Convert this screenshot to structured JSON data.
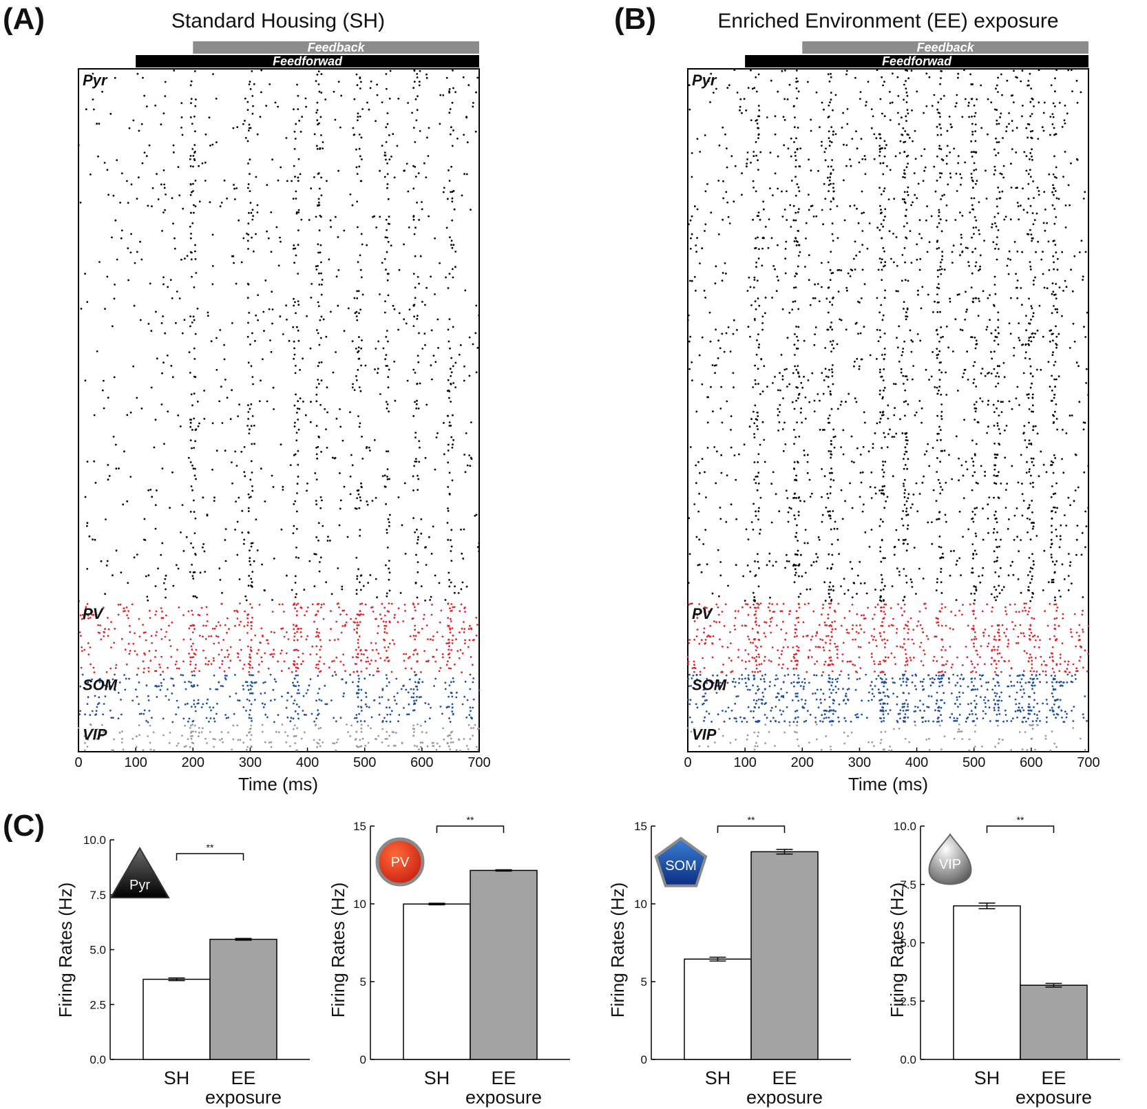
{
  "figure": {
    "panel_a_letter": "(A)",
    "panel_b_letter": "(B)",
    "panel_c_letter": "(C)"
  },
  "chart_data": [
    {
      "type": "scatter",
      "subtype": "raster",
      "id": "raster_sh",
      "title": "Standard Housing (SH)",
      "xlabel": "Time (ms)",
      "xlim": [
        0,
        700
      ],
      "xticks": [
        0,
        100,
        200,
        300,
        400,
        500,
        600,
        700
      ],
      "bars": [
        {
          "label": "Feedback",
          "start": 200,
          "end": 700,
          "color": "#8c8c8c"
        },
        {
          "label": "Feedforwad",
          "start": 100,
          "end": 700,
          "color": "#000000"
        }
      ],
      "populations": [
        {
          "name": "Pyr",
          "color": "#000000",
          "neurons": 150,
          "density": 1.0
        },
        {
          "name": "PV",
          "color": "#e0262b",
          "neurons": 20,
          "density": 1.0
        },
        {
          "name": "SOM",
          "color": "#1f4fa3",
          "neurons": 14,
          "density": 1.0
        },
        {
          "name": "VIP",
          "color": "#9a9a9a",
          "neurons": 8,
          "density": 1.0
        }
      ]
    },
    {
      "type": "scatter",
      "subtype": "raster",
      "id": "raster_ee",
      "title": "Enriched Environment (EE) exposure",
      "xlabel": "Time (ms)",
      "xlim": [
        0,
        700
      ],
      "xticks": [
        0,
        100,
        200,
        300,
        400,
        500,
        600,
        700
      ],
      "bars": [
        {
          "label": "Feedback",
          "start": 200,
          "end": 700,
          "color": "#8c8c8c"
        },
        {
          "label": "Feedforwad",
          "start": 100,
          "end": 700,
          "color": "#000000"
        }
      ],
      "populations": [
        {
          "name": "Pyr",
          "color": "#000000",
          "neurons": 150,
          "density": 1.8
        },
        {
          "name": "PV",
          "color": "#e0262b",
          "neurons": 20,
          "density": 1.3
        },
        {
          "name": "SOM",
          "color": "#1f4fa3",
          "neurons": 14,
          "density": 2.0
        },
        {
          "name": "VIP",
          "color": "#9a9a9a",
          "neurons": 8,
          "density": 0.5
        }
      ]
    },
    {
      "type": "bar",
      "id": "bar_pyr",
      "icon_label": "Pyr",
      "ylabel": "Firing Rates (Hz)",
      "ylim": [
        0,
        10
      ],
      "yticks": [
        "0.0",
        "2.5",
        "5.0",
        "7.5",
        "10.0"
      ],
      "yticks_values": [
        0,
        2.5,
        5,
        7.5,
        10
      ],
      "categories": [
        "SH",
        "EE"
      ],
      "category_sublabels": [
        "",
        "exposure"
      ],
      "values": [
        3.65,
        5.47
      ],
      "errors": [
        0.06,
        0.04
      ],
      "colors": [
        "#ffffff",
        "#a3a3a3"
      ],
      "significance": "**"
    },
    {
      "type": "bar",
      "id": "bar_pv",
      "icon_label": "PV",
      "ylabel": "Firing Rates (Hz)",
      "ylim": [
        0,
        15
      ],
      "yticks": [
        "0",
        "5",
        "10",
        "15"
      ],
      "yticks_values": [
        0,
        5,
        10,
        15
      ],
      "categories": [
        "SH",
        "EE"
      ],
      "category_sublabels": [
        "",
        "exposure"
      ],
      "values": [
        9.99,
        12.15
      ],
      "errors": [
        0.05,
        0.04
      ],
      "colors": [
        "#ffffff",
        "#a3a3a3"
      ],
      "significance": "**"
    },
    {
      "type": "bar",
      "id": "bar_som",
      "icon_label": "SOM",
      "ylabel": "Firing Rates (Hz)",
      "ylim": [
        0,
        15
      ],
      "yticks": [
        "0",
        "5",
        "10",
        "15"
      ],
      "yticks_values": [
        0,
        5,
        10,
        15
      ],
      "categories": [
        "SH",
        "EE"
      ],
      "category_sublabels": [
        "",
        "exposure"
      ],
      "values": [
        6.45,
        13.35
      ],
      "errors": [
        0.12,
        0.15
      ],
      "colors": [
        "#ffffff",
        "#a3a3a3"
      ],
      "significance": "**"
    },
    {
      "type": "bar",
      "id": "bar_vip",
      "icon_label": "VIP",
      "ylabel": "Firing Rates (Hz)",
      "ylim": [
        0,
        10
      ],
      "yticks": [
        "0.0",
        "2.5",
        "5.0",
        "7.5",
        "10.0"
      ],
      "yticks_values": [
        0,
        2.5,
        5,
        7.5,
        10
      ],
      "categories": [
        "SH",
        "EE"
      ],
      "category_sublabels": [
        "",
        "exposure"
      ],
      "values": [
        6.58,
        3.18
      ],
      "errors": [
        0.12,
        0.08
      ],
      "colors": [
        "#ffffff",
        "#a3a3a3"
      ],
      "significance": "**"
    }
  ]
}
